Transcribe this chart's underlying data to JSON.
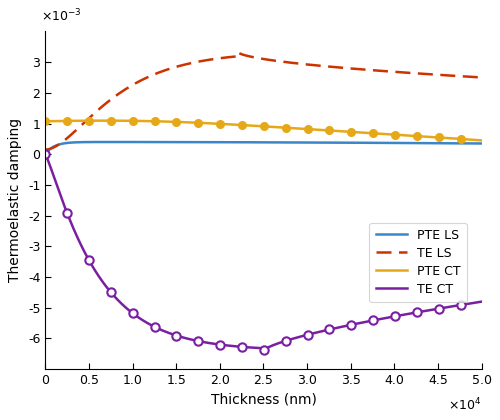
{
  "x_range": [
    0,
    50000
  ],
  "ylim": [
    -0.007,
    0.004
  ],
  "xlabel": "Thickness (nm)",
  "ylabel": "Thermoelastic damping",
  "legend_labels": [
    "PTE LS",
    "TE LS",
    "PTE CT",
    "TE CT"
  ],
  "colors": {
    "PTE_LS": "#3a86c8",
    "TE_LS": "#cc3300",
    "PTE_CT": "#e6a817",
    "TE_CT": "#7b1fa2"
  },
  "yticks": [
    -6,
    -5,
    -4,
    -3,
    -2,
    -1,
    0,
    1,
    2,
    3
  ],
  "xticks": [
    0,
    0.5,
    1.0,
    1.5,
    2.0,
    2.5,
    3.0,
    3.5,
    4.0,
    4.5,
    5.0
  ]
}
